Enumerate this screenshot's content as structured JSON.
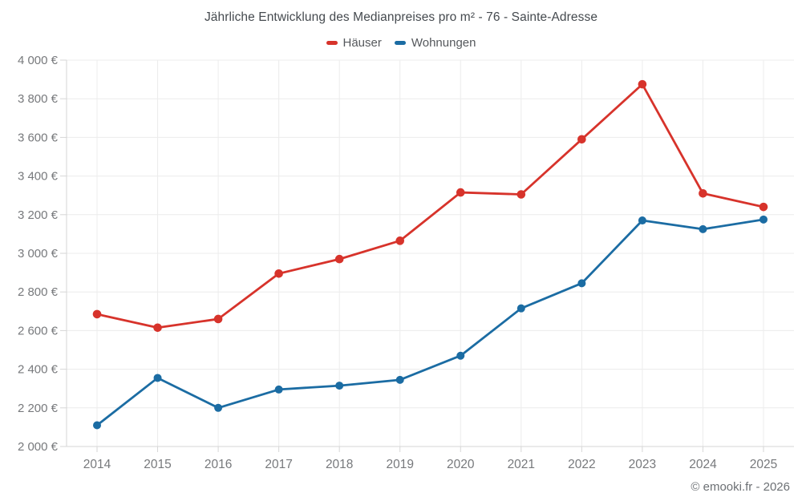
{
  "chart_data": {
    "type": "line",
    "title": "Jährliche Entwicklung des Medianpreises pro m² - 76 - Sainte-Adresse",
    "categories": [
      "2014",
      "2015",
      "2016",
      "2017",
      "2018",
      "2019",
      "2020",
      "2021",
      "2022",
      "2023",
      "2024",
      "2025"
    ],
    "series": [
      {
        "name": "Häuser",
        "color": "#d7332b",
        "values": [
          2685,
          2615,
          2660,
          2895,
          2970,
          3065,
          3315,
          3305,
          3590,
          3875,
          3310,
          3240
        ]
      },
      {
        "name": "Wohnungen",
        "color": "#1b6ca3",
        "values": [
          2110,
          2355,
          2200,
          2295,
          2315,
          2345,
          2470,
          2715,
          2845,
          3170,
          3125,
          3175
        ]
      }
    ],
    "ylim": [
      2000,
      4000
    ],
    "ytick_step": 200,
    "ytick_labels": [
      "2 000 €",
      "2 200 €",
      "2 400 €",
      "2 600 €",
      "2 800 €",
      "3 000 €",
      "3 200 €",
      "3 400 €",
      "3 600 €",
      "3 800 €",
      "4 000 €"
    ],
    "xlabel": "",
    "ylabel": "",
    "grid": true,
    "legend_position": "top",
    "colors": {
      "grid_line": "#ececec",
      "axis_line": "#d6d6d6",
      "tick_label": "#77797c",
      "title_text": "#454a4f",
      "legend_text": "#55585c",
      "credit_text": "#6c7074",
      "background": "#ffffff"
    }
  },
  "footer": {
    "credit": "© emooki.fr - 2026"
  }
}
